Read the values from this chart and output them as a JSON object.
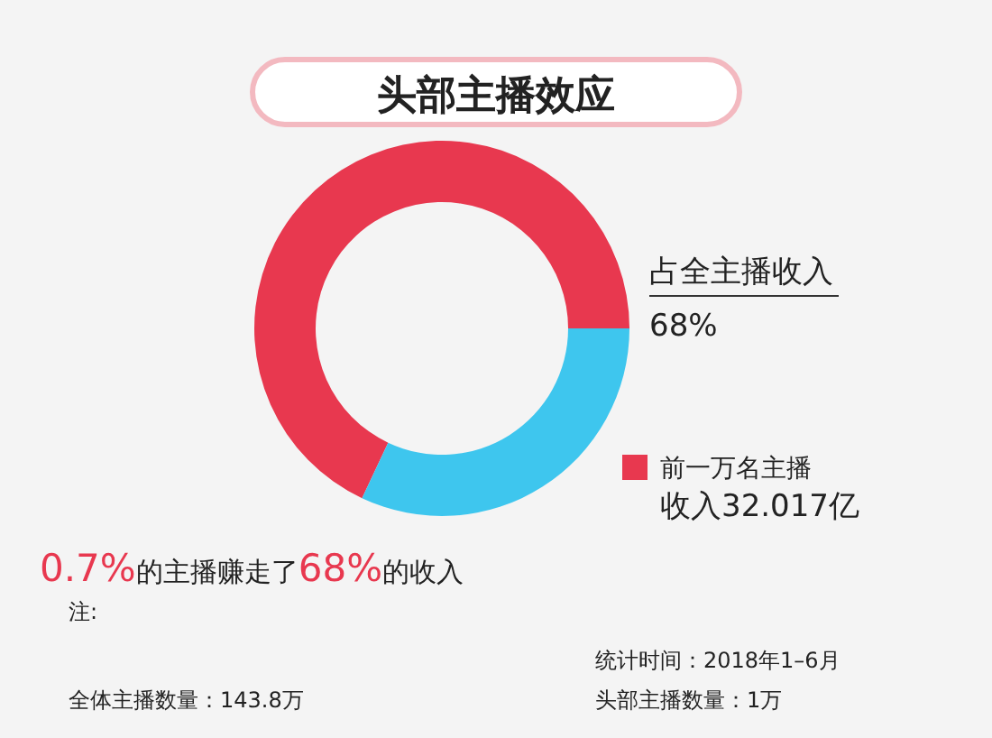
{
  "chart_data": {
    "type": "donut",
    "title": "头部主播效应",
    "categories": [
      "占全主播收入",
      null
    ],
    "values": [
      68,
      32
    ],
    "colors": [
      "#e8384f",
      "#3ec6ee"
    ],
    "value_labels": [
      "68%",
      null
    ],
    "annotations": [
      "前一万名主播",
      "收入32.017亿",
      "0.7%的主播赚走了68%的收入",
      "注:",
      "统计时间：2018年1–6月",
      "全体主播数量：143.8万",
      "头部主播数量：1万"
    ]
  }
}
